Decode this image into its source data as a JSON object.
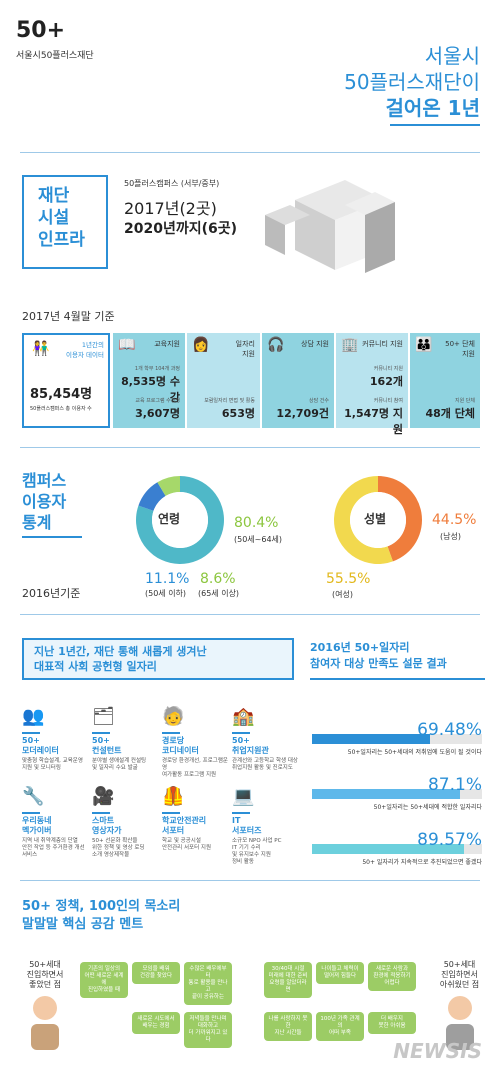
{
  "logo": {
    "mark": "50+",
    "name": "서울시50플러스재단"
  },
  "headline": {
    "line1": "서울시",
    "line2": "50플러스재단이",
    "line3": "걸어온 1년"
  },
  "infra": {
    "box_label": "재단\n시설\n인프라",
    "campus": "50플러스캠퍼스 (서부/중부)",
    "y2017": "2017년(2곳)",
    "y2020": "2020년까지(6곳)"
  },
  "stats": {
    "base": "2017년 4월말 기준",
    "users": {
      "title": "1년간의\n이용자 데이터",
      "value": "85,454명",
      "note": "50플러스캠퍼스 총 이용자 수"
    },
    "cells": [
      {
        "label": "교육지원",
        "note1": "1개 학부 104개 과정",
        "val1": "8,535명 수강",
        "note2": "교육 프로그램 수강생",
        "val2": "3,607명"
      },
      {
        "label": "일자리\n지원",
        "note2": "보람일자리 면접 및 활동",
        "val2": "653명"
      },
      {
        "label": "상담 지원",
        "note2": "상담 건수",
        "val2": "12,709건"
      },
      {
        "label": "커뮤니티 지원",
        "note1": "커뮤니티 지원",
        "val1": "162개",
        "note2": "커뮤니티 참여",
        "val2": "1,547명 지원"
      },
      {
        "label": "50+ 단체\n지원",
        "note2": "지원 단체",
        "val2": "48개 단체"
      }
    ]
  },
  "campus_stats": {
    "box_label": "캠퍼스\n이용자\n통계",
    "base": "2016년기준"
  },
  "chart_data": [
    {
      "type": "pie",
      "title": "연령",
      "categories": [
        "(50세~64세)",
        "(50세 이하)",
        "(65세 이상)"
      ],
      "values": [
        80.4,
        11.1,
        8.6
      ],
      "labels": [
        "80.4%",
        "11.1%",
        "8.6%"
      ],
      "colors": [
        "#4fb8c8",
        "#3a7fd0",
        "#a6d86a"
      ]
    },
    {
      "type": "pie",
      "title": "성별",
      "categories": [
        "(남성)",
        "(여성)"
      ],
      "values": [
        44.5,
        55.5
      ],
      "labels": [
        "44.5%",
        "55.5%"
      ],
      "colors": [
        "#ef7d3c",
        "#f2d94e"
      ]
    },
    {
      "type": "bar",
      "title": "2016년 50+일자리\n참여자 대상 만족도 설문 결과",
      "categories": [
        "50+일자리는 50+세대의 저취업에 도움이 될 것이다",
        "50+일자리는 50+세대에 적합한 일자리다",
        "50+ 일자리가 지속적으로 추진되었으면 좋겠다"
      ],
      "values": [
        69.48,
        87.1,
        89.57
      ],
      "labels": [
        "69.48%",
        "87.1%",
        "89.57%"
      ],
      "colors": [
        "#2b8fd6",
        "#5eb8ea",
        "#6cd0dd"
      ],
      "ylim": [
        0,
        100
      ]
    }
  ],
  "jobs": {
    "header": "지난 1년간, 재단 통해 새롭게 생겨난\n대표적 사회 공헌형 일자리",
    "items": [
      {
        "title": "50+\n모더레이터",
        "desc": "맞춤형 학습설계, 교육운영\n지원 및 모니터링"
      },
      {
        "title": "50+\n컨설턴트",
        "desc": "분야별 생애설계 컨설팅\n및 일자리 수요 발굴"
      },
      {
        "title": "경로당\n코디네이터",
        "desc": "경로당 환경개선, 프로그램운영\n여가활동 프로그램 지원"
      },
      {
        "title": "50+\n취업지원관",
        "desc": "관계선와 고등학교 학생 대상\n취업지원 활동 및 진로지도"
      },
      {
        "title": "우리동네\n멕가이버",
        "desc": "지역 내 취약계층의 단열\n안전 작업 등 주거환경 개선\n서비스"
      },
      {
        "title": "스마트\n영상자가",
        "desc": "50+ 선문화 확산을\n위한 정책 및 영상 로딩\n소개 영상제작물"
      },
      {
        "title": "학교안전관리\n서포터",
        "desc": "학교 및 공공시설\n안전관리 서포터 지원"
      },
      {
        "title": "IT\n서포터즈",
        "desc": "소규모 NPO 사업 PC\nIT 기기 수리\n및 유지보수 지원\n정비 활동"
      }
    ]
  },
  "policy": {
    "header": "50+ 정책, 100인의 목소리\n말말말 핵심 공감 멘트",
    "left_person": "50+세대\n진입하면서\n좋았던 점",
    "right_person": "50+세대\n진입하면서\n아쉬웠던 점",
    "left_bubbles": [
      "기존의 일상의\n어떤 새로운 세계에\n진입하였을 때",
      "모임을 배워\n건강을 찾았다",
      "수많은 배우에부터\n통로 활용을 만나고\n끝이 공유하는",
      "새로운 시도에서\n배우는 경험",
      "저녁들을 만나며\n대화하고\n더 가까워지고 있다"
    ],
    "right_bubbles": [
      "30/40대 시절\n미래에 대한 준비\n요령을 알았더라면",
      "나이들고 체력이\n떨어져 힘들다",
      "새로운 사람과\n환경에 적응하기\n어렵다",
      "나를 사랑하지 못한\n지난 시간들",
      "100년 가족 관계의\n어떠 부족",
      "더 배우지\n못한 아쉬움"
    ]
  },
  "watermark": "NEWSIS"
}
